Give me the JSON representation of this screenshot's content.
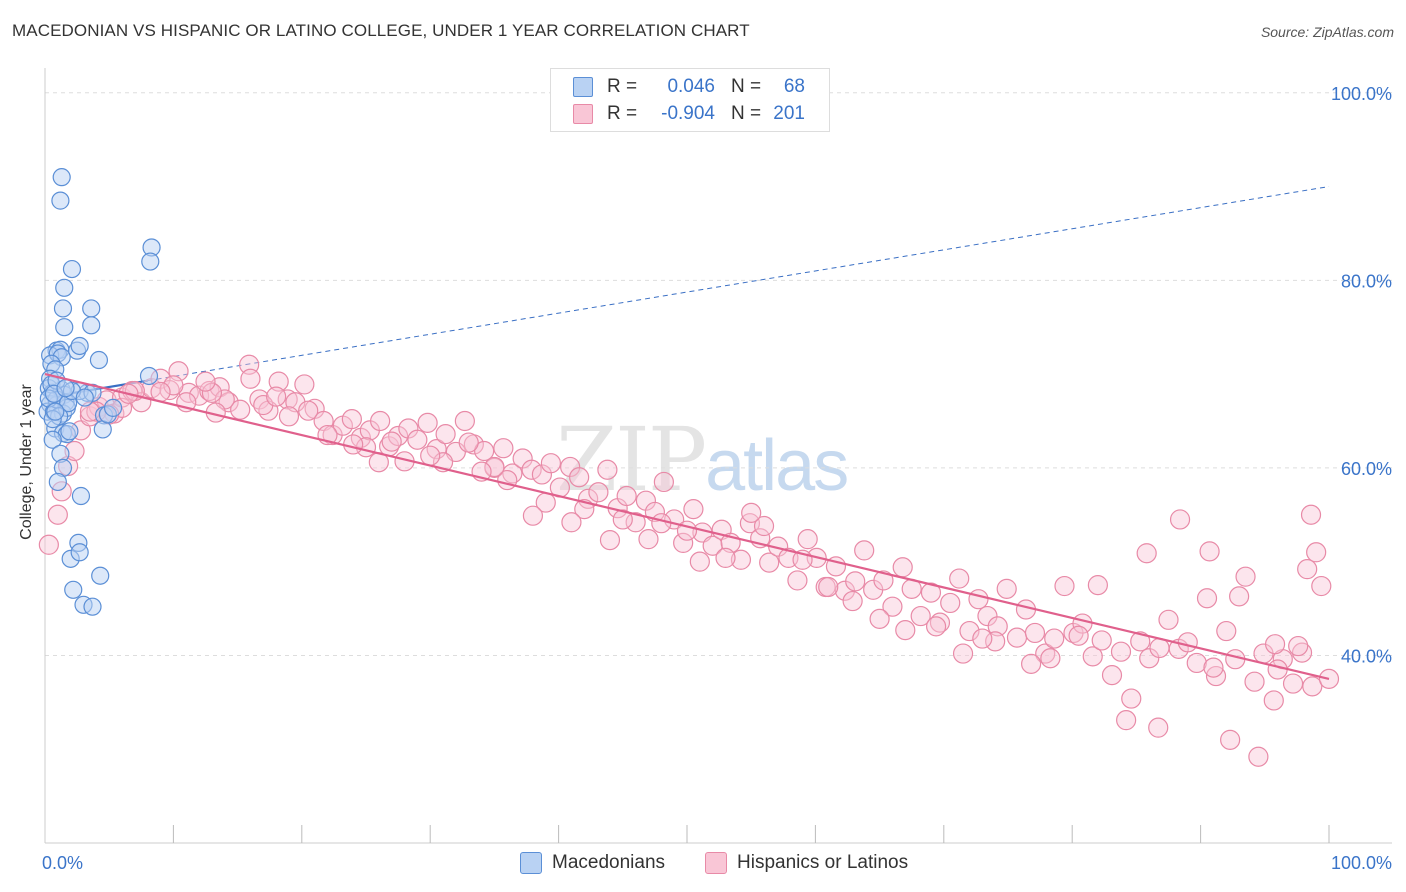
{
  "title": "MACEDONIAN VS HISPANIC OR LATINO COLLEGE, UNDER 1 YEAR CORRELATION CHART",
  "source": "Source: ZipAtlas.com",
  "watermark": {
    "zip": "ZIP",
    "atlas": "atlas"
  },
  "legend": {
    "r_label": "R =",
    "n_label": "N =",
    "rows": [
      {
        "r": "0.046",
        "n": "68",
        "fill": "#b9d2f3",
        "stroke": "#5b8fd6"
      },
      {
        "r": "-0.904",
        "n": "201",
        "fill": "#f9c6d6",
        "stroke": "#e88aa7"
      }
    ]
  },
  "bottom_legend": [
    "Macedonians",
    "Hispanics or Latinos"
  ],
  "colors": {
    "blue_fill": "#b9d2f3",
    "blue_stroke": "#5b8fd6",
    "blue_line": "#3a6fc4",
    "pink_fill": "#f9c6d6",
    "pink_stroke": "#e88aa7",
    "pink_line": "#e0608c",
    "axis_text": "#3a74c9",
    "grid": "#dddddd"
  },
  "chart_data": {
    "type": "scatter",
    "title": "MACEDONIAN VS HISPANIC OR LATINO COLLEGE, UNDER 1 YEAR CORRELATION CHART",
    "xlabel": "",
    "ylabel": "College, Under 1 year",
    "xlim": [
      0,
      100
    ],
    "ylim": [
      20,
      102
    ],
    "x_tick_labels": [
      "0.0%",
      "100.0%"
    ],
    "y_ticks": [
      40,
      60,
      80,
      100
    ],
    "y_tick_labels": [
      "40.0%",
      "60.0%",
      "80.0%",
      "100.0%"
    ],
    "grid": true,
    "legend_position": "top-center",
    "series": [
      {
        "name": "Macedonians",
        "r": 0.046,
        "n": 68,
        "trend": {
          "x": [
            0,
            100
          ],
          "y": [
            67.5,
            90
          ],
          "style_solid_to_x": 8,
          "dashed_after": true
        },
        "points": [
          [
            1.3,
            91
          ],
          [
            1.2,
            88.5
          ],
          [
            8.3,
            83.5
          ],
          [
            8.2,
            82
          ],
          [
            2.1,
            81.2
          ],
          [
            1.5,
            79.2
          ],
          [
            1.4,
            77
          ],
          [
            3.6,
            77
          ],
          [
            1.5,
            75
          ],
          [
            3.6,
            75.2
          ],
          [
            0.9,
            72.5
          ],
          [
            1.2,
            72.6
          ],
          [
            0.4,
            72
          ],
          [
            1.0,
            72.2
          ],
          [
            2.5,
            72.5
          ],
          [
            2.7,
            73
          ],
          [
            1.3,
            71.8
          ],
          [
            0.5,
            71.1
          ],
          [
            0.8,
            70.5
          ],
          [
            4.2,
            71.5
          ],
          [
            0.4,
            69.5
          ],
          [
            0.3,
            68.5
          ],
          [
            0.6,
            68
          ],
          [
            1.3,
            68.3
          ],
          [
            1.5,
            67.8
          ],
          [
            3.3,
            68
          ],
          [
            0.4,
            66.8
          ],
          [
            0.9,
            66.7
          ],
          [
            1.6,
            67
          ],
          [
            2.7,
            68.2
          ],
          [
            3.7,
            68
          ],
          [
            0.2,
            66
          ],
          [
            0.7,
            66
          ],
          [
            1.4,
            65.8
          ],
          [
            1.7,
            66.4
          ],
          [
            4.6,
            65.6
          ],
          [
            0.8,
            64.2
          ],
          [
            1.4,
            63.7
          ],
          [
            1.7,
            63.6
          ],
          [
            4.5,
            64.1
          ],
          [
            0.6,
            63
          ],
          [
            8.1,
            69.8
          ],
          [
            1.2,
            61.5
          ],
          [
            1.4,
            60
          ],
          [
            1.0,
            58.5
          ],
          [
            2.8,
            57
          ],
          [
            0.9,
            67.3
          ],
          [
            2.6,
            52
          ],
          [
            2.0,
            50.3
          ],
          [
            2.7,
            51
          ],
          [
            4.3,
            48.5
          ],
          [
            2.2,
            47
          ],
          [
            3.0,
            45.4
          ],
          [
            3.7,
            45.2
          ],
          [
            0.5,
            68.9
          ],
          [
            1.8,
            66.9
          ],
          [
            0.9,
            69.3
          ],
          [
            4.9,
            65.7
          ],
          [
            0.3,
            67.4
          ],
          [
            1.1,
            65.5
          ],
          [
            2.1,
            68.2
          ],
          [
            0.7,
            67.9
          ],
          [
            5.3,
            66.4
          ],
          [
            1.9,
            63.9
          ],
          [
            0.6,
            65.2
          ],
          [
            3.1,
            67.5
          ],
          [
            1.6,
            68.5
          ],
          [
            0.8,
            66.0
          ]
        ]
      },
      {
        "name": "Hispanics or Latinos",
        "r": -0.904,
        "n": 201,
        "trend": {
          "x": [
            0,
            100
          ],
          "y": [
            70,
            37.5
          ]
        },
        "points": [
          [
            0.3,
            51.8
          ],
          [
            1.0,
            55
          ],
          [
            1.3,
            57.5
          ],
          [
            1.8,
            60.2
          ],
          [
            2.3,
            61.8
          ],
          [
            2.8,
            64
          ],
          [
            3.5,
            65.5
          ],
          [
            4.2,
            66.5
          ],
          [
            4.8,
            67.2
          ],
          [
            5.4,
            65.8
          ],
          [
            6.0,
            67.5
          ],
          [
            6.8,
            68.2
          ],
          [
            7.5,
            67.0
          ],
          [
            8.3,
            68.5
          ],
          [
            9.0,
            69.5
          ],
          [
            9.7,
            68.3
          ],
          [
            10.4,
            70.3
          ],
          [
            11.2,
            68.0
          ],
          [
            12.0,
            67.7
          ],
          [
            12.8,
            68.2
          ],
          [
            13.6,
            68.6
          ],
          [
            14.3,
            67.0
          ],
          [
            15.2,
            66.2
          ],
          [
            15.9,
            71.0
          ],
          [
            16.7,
            67.3
          ],
          [
            17.4,
            66.1
          ],
          [
            18.2,
            69.2
          ],
          [
            18.9,
            67.3
          ],
          [
            19.5,
            67.0
          ],
          [
            20.2,
            68.9
          ],
          [
            21.0,
            66.3
          ],
          [
            21.7,
            65.0
          ],
          [
            22.4,
            63.5
          ],
          [
            23.2,
            64.5
          ],
          [
            23.9,
            65.2
          ],
          [
            24.6,
            63.2
          ],
          [
            25.3,
            64.0
          ],
          [
            26.1,
            65.0
          ],
          [
            26.8,
            62.3
          ],
          [
            27.5,
            63.4
          ],
          [
            28.3,
            64.2
          ],
          [
            29.0,
            63.0
          ],
          [
            29.8,
            64.8
          ],
          [
            30.5,
            62.0
          ],
          [
            31.2,
            63.6
          ],
          [
            32.0,
            61.7
          ],
          [
            32.7,
            65.0
          ],
          [
            33.4,
            62.5
          ],
          [
            34.2,
            61.8
          ],
          [
            35.0,
            60.0
          ],
          [
            35.7,
            62.1
          ],
          [
            36.4,
            59.4
          ],
          [
            37.2,
            61.0
          ],
          [
            37.9,
            59.8
          ],
          [
            38.7,
            59.3
          ],
          [
            39.4,
            60.5
          ],
          [
            40.1,
            57.9
          ],
          [
            40.9,
            60.1
          ],
          [
            41.6,
            59.0
          ],
          [
            42.3,
            56.7
          ],
          [
            43.1,
            57.4
          ],
          [
            43.8,
            59.8
          ],
          [
            44.6,
            55.7
          ],
          [
            45.3,
            57.0
          ],
          [
            46.0,
            54.2
          ],
          [
            46.8,
            56.5
          ],
          [
            47.5,
            55.3
          ],
          [
            48.2,
            58.5
          ],
          [
            49.0,
            54.5
          ],
          [
            49.7,
            52.0
          ],
          [
            50.5,
            55.6
          ],
          [
            51.2,
            53.1
          ],
          [
            52.0,
            51.7
          ],
          [
            52.7,
            53.4
          ],
          [
            53.4,
            52.0
          ],
          [
            54.2,
            50.2
          ],
          [
            54.9,
            54.1
          ],
          [
            55.7,
            52.5
          ],
          [
            56.4,
            49.9
          ],
          [
            57.1,
            51.6
          ],
          [
            57.9,
            50.4
          ],
          [
            58.6,
            48.0
          ],
          [
            59.4,
            52.4
          ],
          [
            60.1,
            50.4
          ],
          [
            60.8,
            47.3
          ],
          [
            61.6,
            49.5
          ],
          [
            62.3,
            46.9
          ],
          [
            63.1,
            47.9
          ],
          [
            63.8,
            51.2
          ],
          [
            64.5,
            47.0
          ],
          [
            65.3,
            48.0
          ],
          [
            66.0,
            45.2
          ],
          [
            66.8,
            49.4
          ],
          [
            67.5,
            47.1
          ],
          [
            68.2,
            44.2
          ],
          [
            69.0,
            46.7
          ],
          [
            69.7,
            43.5
          ],
          [
            70.5,
            45.6
          ],
          [
            71.2,
            48.2
          ],
          [
            72.0,
            42.6
          ],
          [
            72.7,
            46.0
          ],
          [
            73.4,
            44.2
          ],
          [
            74.2,
            43.1
          ],
          [
            74.9,
            47.1
          ],
          [
            75.7,
            41.9
          ],
          [
            76.4,
            44.9
          ],
          [
            77.1,
            42.4
          ],
          [
            77.9,
            40.2
          ],
          [
            78.6,
            41.8
          ],
          [
            79.4,
            47.4
          ],
          [
            80.1,
            42.4
          ],
          [
            80.8,
            43.4
          ],
          [
            81.6,
            39.9
          ],
          [
            82.3,
            41.6
          ],
          [
            83.1,
            37.9
          ],
          [
            83.8,
            40.4
          ],
          [
            84.6,
            35.4
          ],
          [
            85.3,
            41.5
          ],
          [
            86.0,
            39.7
          ],
          [
            86.8,
            40.8
          ],
          [
            87.5,
            43.8
          ],
          [
            88.3,
            40.7
          ],
          [
            89.0,
            41.4
          ],
          [
            89.7,
            39.2
          ],
          [
            90.5,
            46.1
          ],
          [
            91.2,
            37.8
          ],
          [
            92.0,
            42.6
          ],
          [
            92.7,
            39.6
          ],
          [
            93.5,
            48.4
          ],
          [
            94.2,
            37.2
          ],
          [
            94.9,
            40.2
          ],
          [
            95.7,
            35.2
          ],
          [
            96.4,
            39.6
          ],
          [
            97.2,
            37.0
          ],
          [
            97.9,
            40.3
          ],
          [
            98.7,
            36.7
          ],
          [
            99.4,
            47.4
          ],
          [
            100.0,
            37.5
          ],
          [
            95.8,
            41.2
          ],
          [
            97.6,
            41.0
          ],
          [
            96.0,
            38.5
          ],
          [
            98.3,
            49.2
          ],
          [
            99.0,
            51.0
          ],
          [
            98.6,
            55.0
          ],
          [
            84.2,
            33.1
          ],
          [
            86.7,
            32.3
          ],
          [
            88.4,
            54.5
          ],
          [
            90.7,
            51.1
          ],
          [
            92.3,
            31.0
          ],
          [
            93.0,
            46.3
          ],
          [
            94.5,
            29.2
          ],
          [
            91.0,
            38.7
          ],
          [
            82.0,
            47.5
          ],
          [
            80.5,
            42.1
          ],
          [
            85.8,
            50.9
          ],
          [
            76.8,
            39.1
          ],
          [
            78.3,
            39.7
          ],
          [
            74.0,
            41.5
          ],
          [
            73.0,
            41.8
          ],
          [
            71.5,
            40.2
          ],
          [
            69.4,
            43.1
          ],
          [
            67.0,
            42.7
          ],
          [
            65.0,
            43.9
          ],
          [
            62.9,
            45.8
          ],
          [
            61.0,
            47.3
          ],
          [
            59.0,
            50.2
          ],
          [
            56.0,
            53.8
          ],
          [
            55.0,
            55.2
          ],
          [
            53.0,
            50.4
          ],
          [
            51.0,
            50.0
          ],
          [
            50.0,
            53.3
          ],
          [
            48.0,
            54.1
          ],
          [
            47.0,
            52.4
          ],
          [
            45.0,
            54.5
          ],
          [
            44.0,
            52.3
          ],
          [
            42.0,
            55.6
          ],
          [
            41.0,
            54.2
          ],
          [
            39.0,
            56.3
          ],
          [
            38.0,
            54.9
          ],
          [
            36.0,
            58.7
          ],
          [
            35.0,
            60.1
          ],
          [
            34.0,
            59.6
          ],
          [
            33.0,
            62.7
          ],
          [
            31.0,
            60.6
          ],
          [
            30.0,
            61.3
          ],
          [
            28.0,
            60.7
          ],
          [
            27.0,
            62.8
          ],
          [
            26.0,
            60.6
          ],
          [
            25.0,
            62.2
          ],
          [
            24.0,
            62.5
          ],
          [
            22.0,
            63.5
          ],
          [
            20.5,
            66.1
          ],
          [
            19.0,
            65.5
          ],
          [
            17.0,
            66.7
          ],
          [
            16.0,
            69.5
          ],
          [
            14.0,
            67.3
          ],
          [
            13.0,
            68.0
          ],
          [
            11.0,
            67.0
          ],
          [
            10.0,
            68.8
          ],
          [
            9.0,
            68.1
          ],
          [
            7.0,
            68.2
          ],
          [
            6.0,
            66.4
          ],
          [
            5.0,
            65.7
          ],
          [
            4.0,
            66.0
          ],
          [
            3.5,
            66.0
          ],
          [
            6.5,
            67.9
          ],
          [
            12.5,
            69.2
          ],
          [
            18.0,
            67.6
          ],
          [
            13.3,
            65.9
          ]
        ]
      }
    ]
  }
}
